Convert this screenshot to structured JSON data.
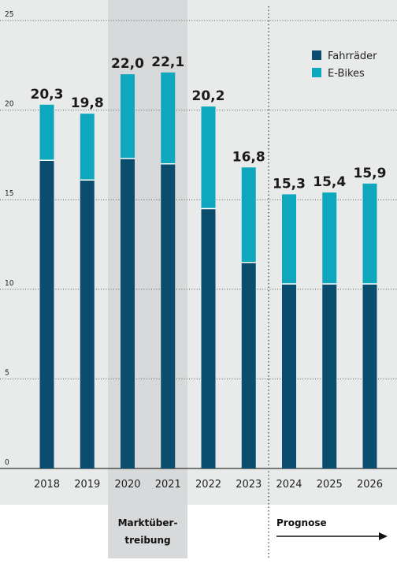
{
  "chart_data": {
    "type": "bar",
    "stacked": true,
    "title": "",
    "xlabel": "",
    "ylabel": "",
    "categories": [
      "2018",
      "2019",
      "2020",
      "2021",
      "2022",
      "2023",
      "2024",
      "2025",
      "2026"
    ],
    "series": [
      {
        "name": "Fahrräder",
        "color": "#0b4d6e",
        "values": [
          17.2,
          16.1,
          17.3,
          17.0,
          14.5,
          11.5,
          10.3,
          10.3,
          10.3
        ]
      },
      {
        "name": "E-Bikes",
        "color": "#0ea7bd",
        "values": [
          3.1,
          3.7,
          4.7,
          5.1,
          5.7,
          5.3,
          5.0,
          5.1,
          5.6
        ]
      }
    ],
    "totals_labels": [
      "20,3",
      "19,8",
      "22,0",
      "22,1",
      "20,2",
      "16,8",
      "15,3",
      "15,4",
      "15,9"
    ],
    "totals": [
      20.3,
      19.8,
      22.0,
      22.1,
      20.2,
      16.8,
      15.3,
      15.4,
      15.9
    ],
    "ylim": [
      0,
      25
    ],
    "yticks": [
      0,
      5,
      10,
      15,
      20,
      25
    ],
    "grid": true,
    "legend_position": "top-right",
    "annotations": {
      "highlight": {
        "label_line1": "Marktüber-",
        "label_line2": "treibung",
        "categories": [
          "2020",
          "2021"
        ]
      },
      "forecast": {
        "label": "Prognose",
        "from_category": "2024"
      }
    }
  }
}
